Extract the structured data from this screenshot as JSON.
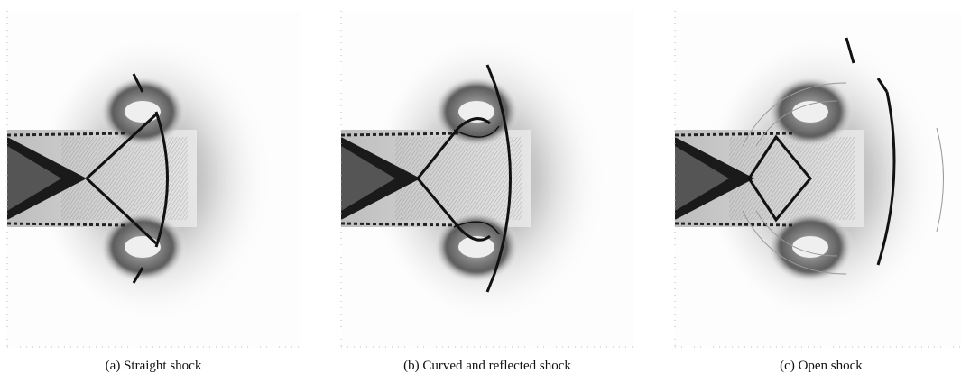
{
  "figure": {
    "panels": [
      {
        "caption": "(a) Straight shock"
      },
      {
        "caption": "(b) Curved and reflected shock"
      },
      {
        "caption": "(c) Open shock"
      }
    ]
  }
}
